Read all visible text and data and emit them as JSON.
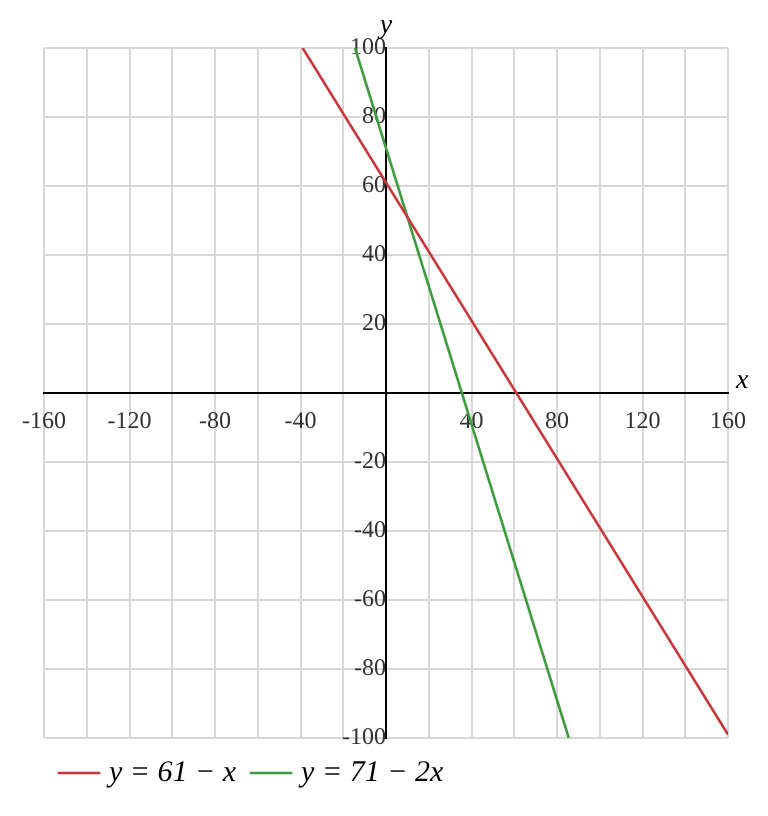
{
  "chart_data": {
    "type": "line",
    "xlabel": "x",
    "ylabel": "y",
    "xlim": [
      -160,
      160
    ],
    "ylim": [
      -100,
      100
    ],
    "xticks": [
      -160,
      {
        "value": -140,
        "label": null
      },
      -120,
      {
        "value": -100,
        "label": null
      },
      -80,
      {
        "value": -60,
        "label": null
      },
      -40,
      {
        "value": -20,
        "label": null
      },
      {
        "value": 0,
        "label": null
      },
      {
        "value": 20,
        "label": null
      },
      40,
      {
        "value": 60,
        "label": null
      },
      80,
      {
        "value": 100,
        "label": null
      },
      120,
      {
        "value": 140,
        "label": null
      },
      160
    ],
    "yticks": [
      -100,
      -80,
      -60,
      -40,
      -20,
      {
        "value": 0,
        "label": null
      },
      20,
      40,
      60,
      80,
      100
    ],
    "grid": true,
    "legend": "bottom",
    "marker": "none",
    "line_style": "solid",
    "series": [
      {
        "name": "y = 61 − x",
        "color": "#c8373b",
        "x": [
          -39,
          160
        ],
        "values": [
          100,
          -99
        ]
      },
      {
        "name": "y = 71 − 2x",
        "color": "#3e9a3e",
        "x": [
          -14.5,
          85.5
        ],
        "values": [
          100,
          -100
        ]
      }
    ]
  }
}
